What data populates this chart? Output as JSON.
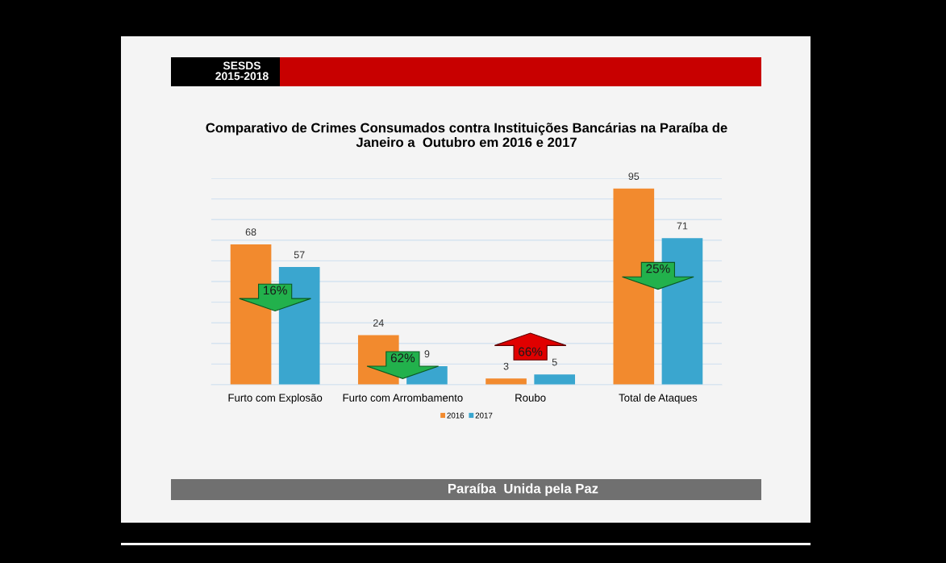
{
  "chart_data": {
    "type": "bar",
    "title": "Comparativo de Crimes Consumados contra Instituições Bancárias na Paraíba de\nJaneiro a  Outubro em 2016 e 2017",
    "categories": [
      "Furto com Explosão",
      "Furto com Arrombamento",
      "Roubo",
      "Total de Ataques"
    ],
    "series": [
      {
        "name": "2016",
        "color": "#f28a2e",
        "values": [
          68,
          24,
          3,
          95
        ]
      },
      {
        "name": "2017",
        "color": "#3aa6cf",
        "values": [
          57,
          9,
          5,
          71
        ]
      }
    ],
    "data_labels": true,
    "ylim": [
      0,
      100
    ],
    "yticks": [
      0,
      10,
      20,
      30,
      40,
      50,
      60,
      70,
      80,
      90,
      100
    ],
    "grid": "y",
    "tick_labels": "x",
    "legend": "bottom",
    "annotations": [
      "SESDS\n2015-2018",
      "Paraíba  Unida pela Paz",
      "16%",
      "62%",
      "66%",
      "25%"
    ]
  }
}
